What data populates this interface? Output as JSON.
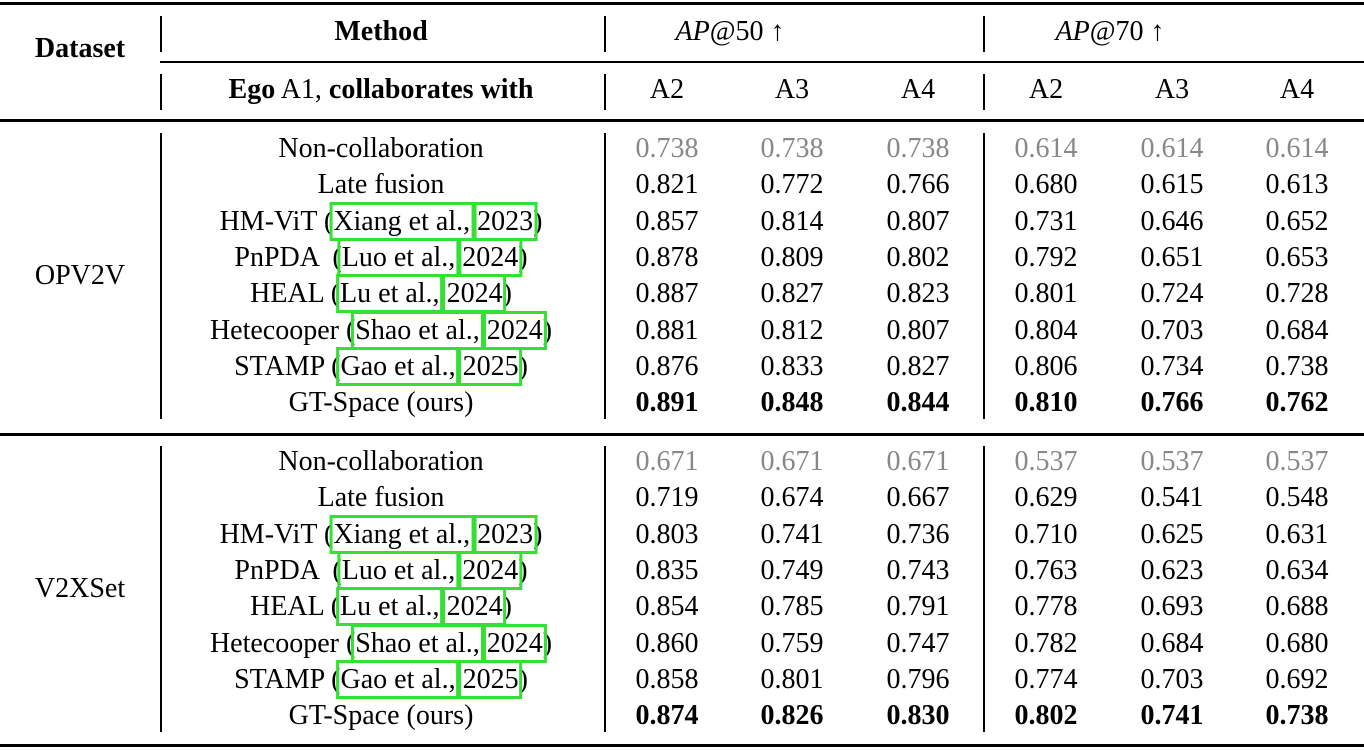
{
  "header": {
    "dataset": "Dataset",
    "method": "Method",
    "metric_groups": [
      {
        "metric": "AP",
        "suffix": "@50 ↑"
      },
      {
        "metric": "AP",
        "suffix": "@70 ↑"
      }
    ],
    "subheader": {
      "ego": "Ego",
      "agent": " A1,",
      "rest": " collaborates with"
    },
    "columns": [
      "A2",
      "A3",
      "A4",
      "A2",
      "A3",
      "A4"
    ]
  },
  "sections": [
    {
      "dataset": "OPV2V",
      "rows": [
        {
          "method": {
            "name": "Non-collaboration"
          },
          "values": [
            "0.738",
            "0.738",
            "0.738",
            "0.614",
            "0.614",
            "0.614"
          ]
        },
        {
          "method": {
            "name": "Late fusion"
          },
          "values": [
            "0.821",
            "0.772",
            "0.766",
            "0.680",
            "0.615",
            "0.613"
          ]
        },
        {
          "method": {
            "name": "HM-ViT (",
            "author": "Xiang et al.,",
            "year": "2023",
            "close": ")"
          },
          "values": [
            "0.857",
            "0.814",
            "0.807",
            "0.731",
            "0.646",
            "0.652"
          ]
        },
        {
          "method": {
            "name": "PnPDA  (",
            "author": "Luo et al.,",
            "year": "2024",
            "close": ")"
          },
          "values": [
            "0.878",
            "0.809",
            "0.802",
            "0.792",
            "0.651",
            "0.653"
          ]
        },
        {
          "method": {
            "name": "HEAL (",
            "author": "Lu et al.,",
            "year": "2024",
            "close": ")"
          },
          "values": [
            "0.887",
            "0.827",
            "0.823",
            "0.801",
            "0.724",
            "0.728"
          ]
        },
        {
          "method": {
            "name": "Hetecooper (",
            "author": "Shao et al.,",
            "year": "2024",
            "close": ")"
          },
          "values": [
            "0.881",
            "0.812",
            "0.807",
            "0.804",
            "0.703",
            "0.684"
          ]
        },
        {
          "method": {
            "name": "STAMP (",
            "author": "Gao et al.,",
            "year": "2025",
            "close": ")"
          },
          "values": [
            "0.876",
            "0.833",
            "0.827",
            "0.806",
            "0.734",
            "0.738"
          ]
        },
        {
          "method": {
            "name": "GT-Space (ours)"
          },
          "values": [
            "0.891",
            "0.848",
            "0.844",
            "0.810",
            "0.766",
            "0.762"
          ]
        }
      ]
    },
    {
      "dataset": "V2XSet",
      "rows": [
        {
          "method": {
            "name": "Non-collaboration"
          },
          "values": [
            "0.671",
            "0.671",
            "0.671",
            "0.537",
            "0.537",
            "0.537"
          ]
        },
        {
          "method": {
            "name": "Late fusion"
          },
          "values": [
            "0.719",
            "0.674",
            "0.667",
            "0.629",
            "0.541",
            "0.548"
          ]
        },
        {
          "method": {
            "name": "HM-ViT (",
            "author": "Xiang et al.,",
            "year": "2023",
            "close": ")"
          },
          "values": [
            "0.803",
            "0.741",
            "0.736",
            "0.710",
            "0.625",
            "0.631"
          ]
        },
        {
          "method": {
            "name": "PnPDA  (",
            "author": "Luo et al.,",
            "year": "2024",
            "close": ")"
          },
          "values": [
            "0.835",
            "0.749",
            "0.743",
            "0.763",
            "0.623",
            "0.634"
          ]
        },
        {
          "method": {
            "name": "HEAL (",
            "author": "Lu et al.,",
            "year": "2024",
            "close": ")"
          },
          "values": [
            "0.854",
            "0.785",
            "0.791",
            "0.778",
            "0.693",
            "0.688"
          ]
        },
        {
          "method": {
            "name": "Hetecooper (",
            "author": "Shao et al.,",
            "year": "2024",
            "close": ")"
          },
          "values": [
            "0.860",
            "0.759",
            "0.747",
            "0.782",
            "0.684",
            "0.680"
          ]
        },
        {
          "method": {
            "name": "STAMP (",
            "author": "Gao et al.,",
            "year": "2025",
            "close": ")"
          },
          "values": [
            "0.858",
            "0.801",
            "0.796",
            "0.774",
            "0.703",
            "0.692"
          ]
        },
        {
          "method": {
            "name": "GT-Space (ours)"
          },
          "values": [
            "0.874",
            "0.826",
            "0.830",
            "0.802",
            "0.741",
            "0.738"
          ]
        }
      ]
    }
  ]
}
